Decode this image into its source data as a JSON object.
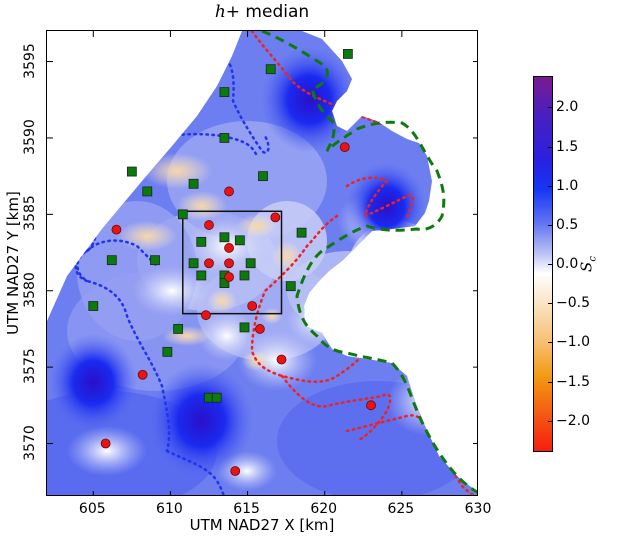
{
  "chart_data": {
    "type": "heatmap",
    "title": "h+ median",
    "title_parts": {
      "math": "h+",
      "text": " median"
    },
    "xlabel": "UTM NAD27 X [km]",
    "ylabel": "UTM NAD27 Y [km]",
    "xlim": [
      602,
      630
    ],
    "ylim": [
      3566.5,
      3597
    ],
    "x_ticks": [
      605,
      610,
      615,
      620,
      625,
      630
    ],
    "y_ticks": [
      3570,
      3575,
      3580,
      3585,
      3590,
      3595
    ],
    "grid": false,
    "colorbar": {
      "label": "S_c",
      "range": [
        -2.4,
        2.4
      ],
      "ticks": [
        2.0,
        1.5,
        1.0,
        0.5,
        0.0,
        -0.5,
        -1.0,
        -1.5,
        -2.0
      ],
      "tick_labels": [
        "2.0",
        "1.5",
        "1.0",
        "0.5",
        "0.0",
        "−0.5",
        "−1.0",
        "−1.5",
        "−2.0"
      ],
      "colormap": "red-orange-white-blue-purple (diverging)"
    },
    "field_description": "Interpolated S_c field, mostly positive (blue, 0.5 to 1.8) with small negative (orange, around -0.3 to -0.5) patches near the center; white (no data) in NW corner and east embayment",
    "high_regions": [
      {
        "x": 609,
        "y": 3592,
        "value": 1.4
      },
      {
        "x": 619,
        "y": 3592.5,
        "value": 1.7
      },
      {
        "x": 624,
        "y": 3585.5,
        "value": 1.5
      },
      {
        "x": 605,
        "y": 3574,
        "value": 1.6
      },
      {
        "x": 612,
        "y": 3571.5,
        "value": 1.8
      }
    ],
    "square_markers_green": [
      [
        616.5,
        3594.5
      ],
      [
        613.5,
        3593
      ],
      [
        613.5,
        3590
      ],
      [
        616,
        3587.5
      ],
      [
        607.5,
        3587.8
      ],
      [
        611.5,
        3587
      ],
      [
        608.5,
        3586.5
      ],
      [
        621.5,
        3595.5
      ],
      [
        610.8,
        3585
      ],
      [
        613.5,
        3583.5
      ],
      [
        612,
        3583.2
      ],
      [
        614.5,
        3583.3
      ],
      [
        618.5,
        3583.8
      ],
      [
        606.2,
        3582
      ],
      [
        609,
        3582
      ],
      [
        611.5,
        3581.8
      ],
      [
        615.2,
        3581.8
      ],
      [
        612,
        3581
      ],
      [
        613.5,
        3581
      ],
      [
        614.8,
        3581
      ],
      [
        613.5,
        3580.5
      ],
      [
        617.8,
        3580.3
      ],
      [
        605,
        3579
      ],
      [
        610.5,
        3577.5
      ],
      [
        614.8,
        3577.6
      ],
      [
        609.8,
        3576
      ],
      [
        612.5,
        3573
      ],
      [
        613,
        3573
      ]
    ],
    "circle_markers_red": [
      [
        621.3,
        3589.4
      ],
      [
        613.8,
        3586.5
      ],
      [
        606.5,
        3584
      ],
      [
        612.5,
        3584.3
      ],
      [
        616.8,
        3584.8
      ],
      [
        613.8,
        3582.8
      ],
      [
        612.5,
        3581.8
      ],
      [
        613.8,
        3581.8
      ],
      [
        613.8,
        3580.9
      ],
      [
        615.3,
        3579
      ],
      [
        612.3,
        3578.4
      ],
      [
        615.8,
        3577.5
      ],
      [
        617.2,
        3575.5
      ],
      [
        608.2,
        3574.5
      ],
      [
        623,
        3572.5
      ],
      [
        605.8,
        3570
      ],
      [
        614.2,
        3568.2
      ]
    ],
    "overlays": [
      {
        "style": "blue dotted contour",
        "desc": "several loops through west/central region"
      },
      {
        "style": "red dotted contour",
        "desc": "east and southeast region loops"
      },
      {
        "style": "green dashed line",
        "desc": "data coverage boundary on east side"
      },
      {
        "style": "black rectangle",
        "x": [
          610.8,
          617.2
        ],
        "y": [
          3578.5,
          3585.2
        ]
      }
    ]
  },
  "labels": {
    "title_math": "h+",
    "title_text": " median",
    "xlabel": "UTM NAD27 X [km]",
    "ylabel": "UTM NAD27 Y [km]",
    "cbar_label": "S",
    "cbar_label_sub": "c"
  }
}
